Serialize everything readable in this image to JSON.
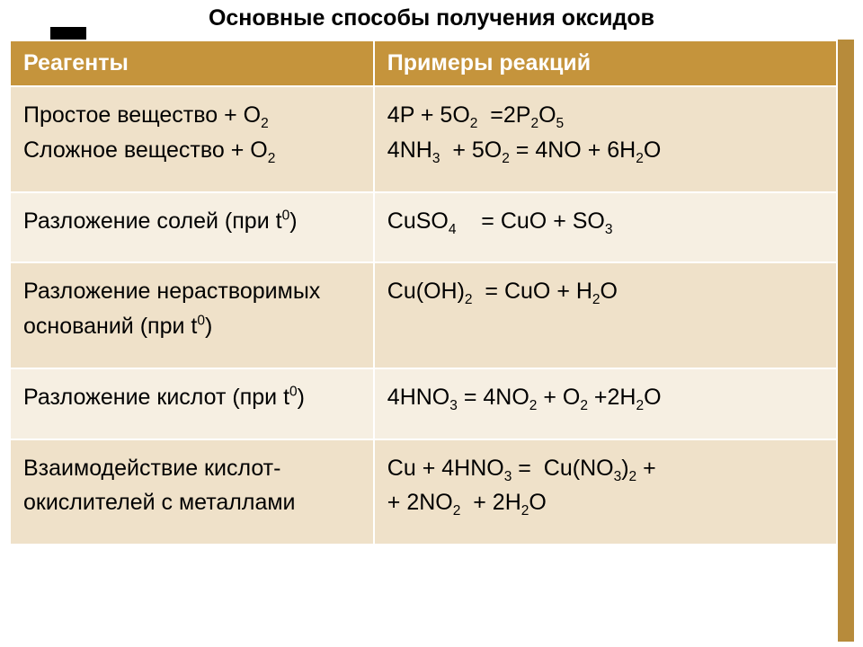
{
  "title": "Основные способы получения оксидов",
  "header": {
    "col1": "Реагенты",
    "col2": "Примеры реакций"
  },
  "rows": [
    {
      "reagent_html": "Простое вещество + O<sub>2</sub><br>Сложное вещество + O<sub>2</sub>",
      "example_html": "4P + 5O<sub>2</sub>&nbsp; =2P<sub>2</sub>O<sub>5</sub><br>4NH<sub>3</sub>&nbsp; + 5O<sub>2</sub> = 4NO + 6H<sub>2</sub>O",
      "shade": "r0"
    },
    {
      "reagent_html": "Разложение солей (при t<sup>0</sup>)",
      "example_html": "CuSO<sub>4</sub>&nbsp;&nbsp;&nbsp; = CuO + SO<sub>3</sub>",
      "shade": "r1"
    },
    {
      "reagent_html": "Разложение нерастворимых оснований (при t<sup>0</sup>)",
      "example_html": "Cu(OH)<sub>2</sub>&nbsp; = CuO + H<sub>2</sub>O",
      "shade": "r0"
    },
    {
      "reagent_html": "Разложение кислот (при t<sup>0</sup>)",
      "example_html": "4HNO<sub>3</sub> = 4NO<sub>2</sub> + O<sub>2</sub> +2H<sub>2</sub>O",
      "shade": "r1"
    },
    {
      "reagent_html": "Взаимодействие кислот-окислителей с металлами",
      "example_html": "Cu + 4HNO<sub>3</sub> =&nbsp; Cu(NO<sub>3</sub>)<sub>2</sub> +<br>+ 2NO<sub>2</sub>&nbsp; + 2H<sub>2</sub>O",
      "shade": "r0"
    }
  ],
  "colors": {
    "header_bg": "#c5943c",
    "header_fg": "#ffffff",
    "row_even": "#efe1c9",
    "row_odd": "#f6efe2",
    "frame": "#b78b3b"
  }
}
